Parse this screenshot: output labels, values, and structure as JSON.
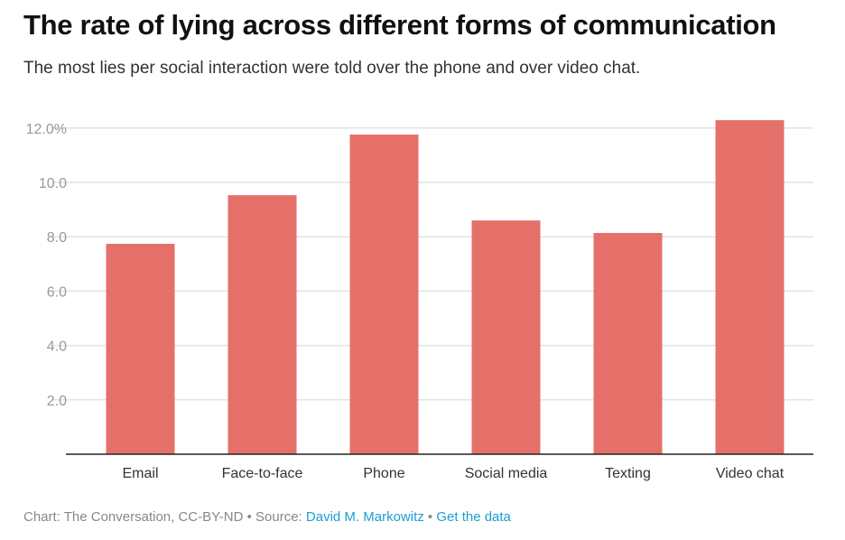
{
  "chart_data": {
    "type": "bar",
    "title": "The rate of lying across different forms of communication",
    "subtitle": "The most lies per social interaction were told over the phone and over video chat.",
    "categories": [
      "Email",
      "Face-to-face",
      "Phone",
      "Social media",
      "Texting",
      "Video chat"
    ],
    "values": [
      7.74,
      9.53,
      11.76,
      8.6,
      8.14,
      12.29
    ],
    "xlabel": "",
    "ylabel": "",
    "ylim": [
      0,
      13
    ],
    "yticks": [
      2,
      4,
      6,
      8,
      10,
      12
    ],
    "ytick_labels": [
      "2.0",
      "4.0",
      "6.0",
      "8.0",
      "10.0",
      "12.0%"
    ],
    "grid": true,
    "bar_color": "#e5706a"
  },
  "footer": {
    "credit": "Chart: The Conversation, CC-BY-ND • Source: ",
    "source_link": "David M. Markowitz",
    "separator": " • ",
    "data_link": "Get the data"
  }
}
